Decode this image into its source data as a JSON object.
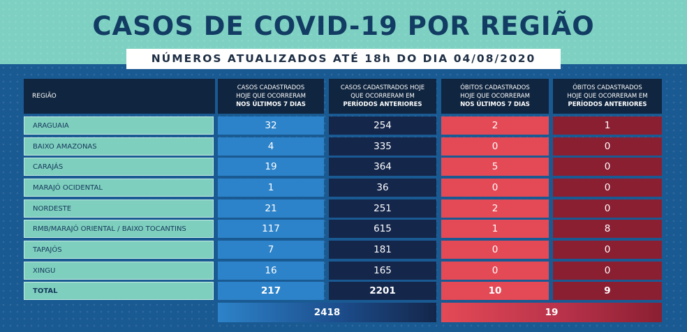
{
  "title": "CASOS DE COVID-19 POR REGIÃO",
  "subtitle": "NÚMEROS ATUALIZADOS ATÉ 18h DO DIA 04/08/2020",
  "headers": {
    "region": "REGIÃO",
    "col1_a": "CASOS CADASTRADOS",
    "col1_b": "HOJE QUE OCORRERAM",
    "col1_c": "NOS ÚLTIMOS 7 DIAS",
    "col2_a": "CASOS CADASTRADOS HOJE",
    "col2_b": "QUE OCORRERAM EM",
    "col2_c": "PERÍODOS ANTERIORES",
    "col3_a": "ÓBITOS CADASTRADOS",
    "col3_b": "HOJE QUE OCORRERAM",
    "col3_c": "NOS ÚLTIMOS 7 DIAS",
    "col4_a": "ÓBITOS CADASTRADOS",
    "col4_b": "HOJE QUE OCORRERAM EM",
    "col4_c": "PERÍODOS ANTERIORES"
  },
  "rows": [
    {
      "region": "ARAGUAIA",
      "c1": "32",
      "c2": "254",
      "c3": "2",
      "c4": "1"
    },
    {
      "region": "BAIXO AMAZONAS",
      "c1": "4",
      "c2": "335",
      "c3": "0",
      "c4": "0"
    },
    {
      "region": "CARAJÁS",
      "c1": "19",
      "c2": "364",
      "c3": "5",
      "c4": "0"
    },
    {
      "region": "MARAJÓ OCIDENTAL",
      "c1": "1",
      "c2": "36",
      "c3": "0",
      "c4": "0"
    },
    {
      "region": "NORDESTE",
      "c1": "21",
      "c2": "251",
      "c3": "2",
      "c4": "0"
    },
    {
      "region": "RMB/MARAJÓ ORIENTAL / BAIXO TOCANTINS",
      "c1": "117",
      "c2": "615",
      "c3": "1",
      "c4": "8"
    },
    {
      "region": "TAPAJÓS",
      "c1": "7",
      "c2": "181",
      "c3": "0",
      "c4": "0"
    },
    {
      "region": "XINGU",
      "c1": "16",
      "c2": "165",
      "c3": "0",
      "c4": "0"
    }
  ],
  "total": {
    "region": "TOTAL",
    "c1": "217",
    "c2": "2201",
    "c3": "10",
    "c4": "9"
  },
  "sums": {
    "casos": "2418",
    "obitos": "19"
  },
  "colors": {
    "teal": "#7fcfbe",
    "blue": "#2d83c9",
    "navy": "#14264a",
    "red": "#e44a56",
    "maroon": "#8b1f32"
  },
  "chart_data": {
    "type": "table",
    "title": "CASOS DE COVID-19 POR REGIÃO",
    "subtitle": "NÚMEROS ATUALIZADOS ATÉ 18h DO DIA 04/08/2020",
    "columns": [
      "REGIÃO",
      "CASOS CADASTRADOS HOJE QUE OCORRERAM NOS ÚLTIMOS 7 DIAS",
      "CASOS CADASTRADOS HOJE QUE OCORRERAM EM PERÍODOS ANTERIORES",
      "ÓBITOS CADASTRADOS HOJE QUE OCORRERAM NOS ÚLTIMOS 7 DIAS",
      "ÓBITOS CADASTRADOS HOJE QUE OCORRERAM EM PERÍODOS ANTERIORES"
    ],
    "rows": [
      [
        "ARAGUAIA",
        32,
        254,
        2,
        1
      ],
      [
        "BAIXO AMAZONAS",
        4,
        335,
        0,
        0
      ],
      [
        "CARAJÁS",
        19,
        364,
        5,
        0
      ],
      [
        "MARAJÓ OCIDENTAL",
        1,
        36,
        0,
        0
      ],
      [
        "NORDESTE",
        21,
        251,
        2,
        0
      ],
      [
        "RMB/MARAJÓ ORIENTAL / BAIXO TOCANTINS",
        117,
        615,
        1,
        8
      ],
      [
        "TAPAJÓS",
        7,
        181,
        0,
        0
      ],
      [
        "XINGU",
        16,
        165,
        0,
        0
      ],
      [
        "TOTAL",
        217,
        2201,
        10,
        9
      ]
    ],
    "grand_totals": {
      "casos": 2418,
      "obitos": 19
    }
  }
}
